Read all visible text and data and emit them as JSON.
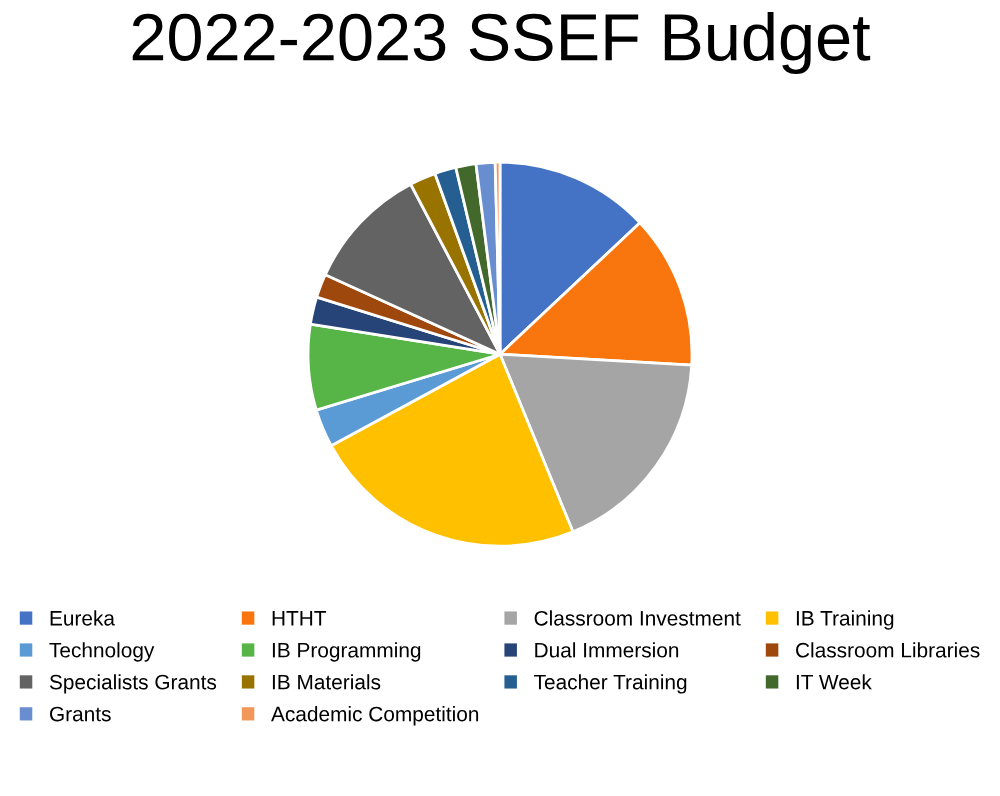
{
  "chart_data": {
    "type": "pie",
    "title": "2022-2023 SSEF Budget",
    "categories": [
      "Eureka",
      "HTHT",
      "Classroom Investment",
      "IB Training",
      "Technology",
      "IB Programming",
      "Dual Immersion",
      "Classroom Libraries",
      "Specialists Grants",
      "IB Materials",
      "Teacher Training",
      "IT Week",
      "Grants",
      "Academic Competition"
    ],
    "values": [
      13.0,
      12.9,
      17.9,
      23.3,
      3.2,
      7.2,
      2.3,
      2.0,
      10.5,
      2.2,
      1.8,
      1.7,
      1.6,
      0.4
    ],
    "colors": [
      "#4472c4",
      "#f8760d",
      "#a5a5a5",
      "#ffc000",
      "#5b9bd5",
      "#56b546",
      "#264478",
      "#9e480e",
      "#636363",
      "#997300",
      "#255e91",
      "#43682b",
      "#698ed0",
      "#f1975a"
    ],
    "legend": "bottom"
  }
}
